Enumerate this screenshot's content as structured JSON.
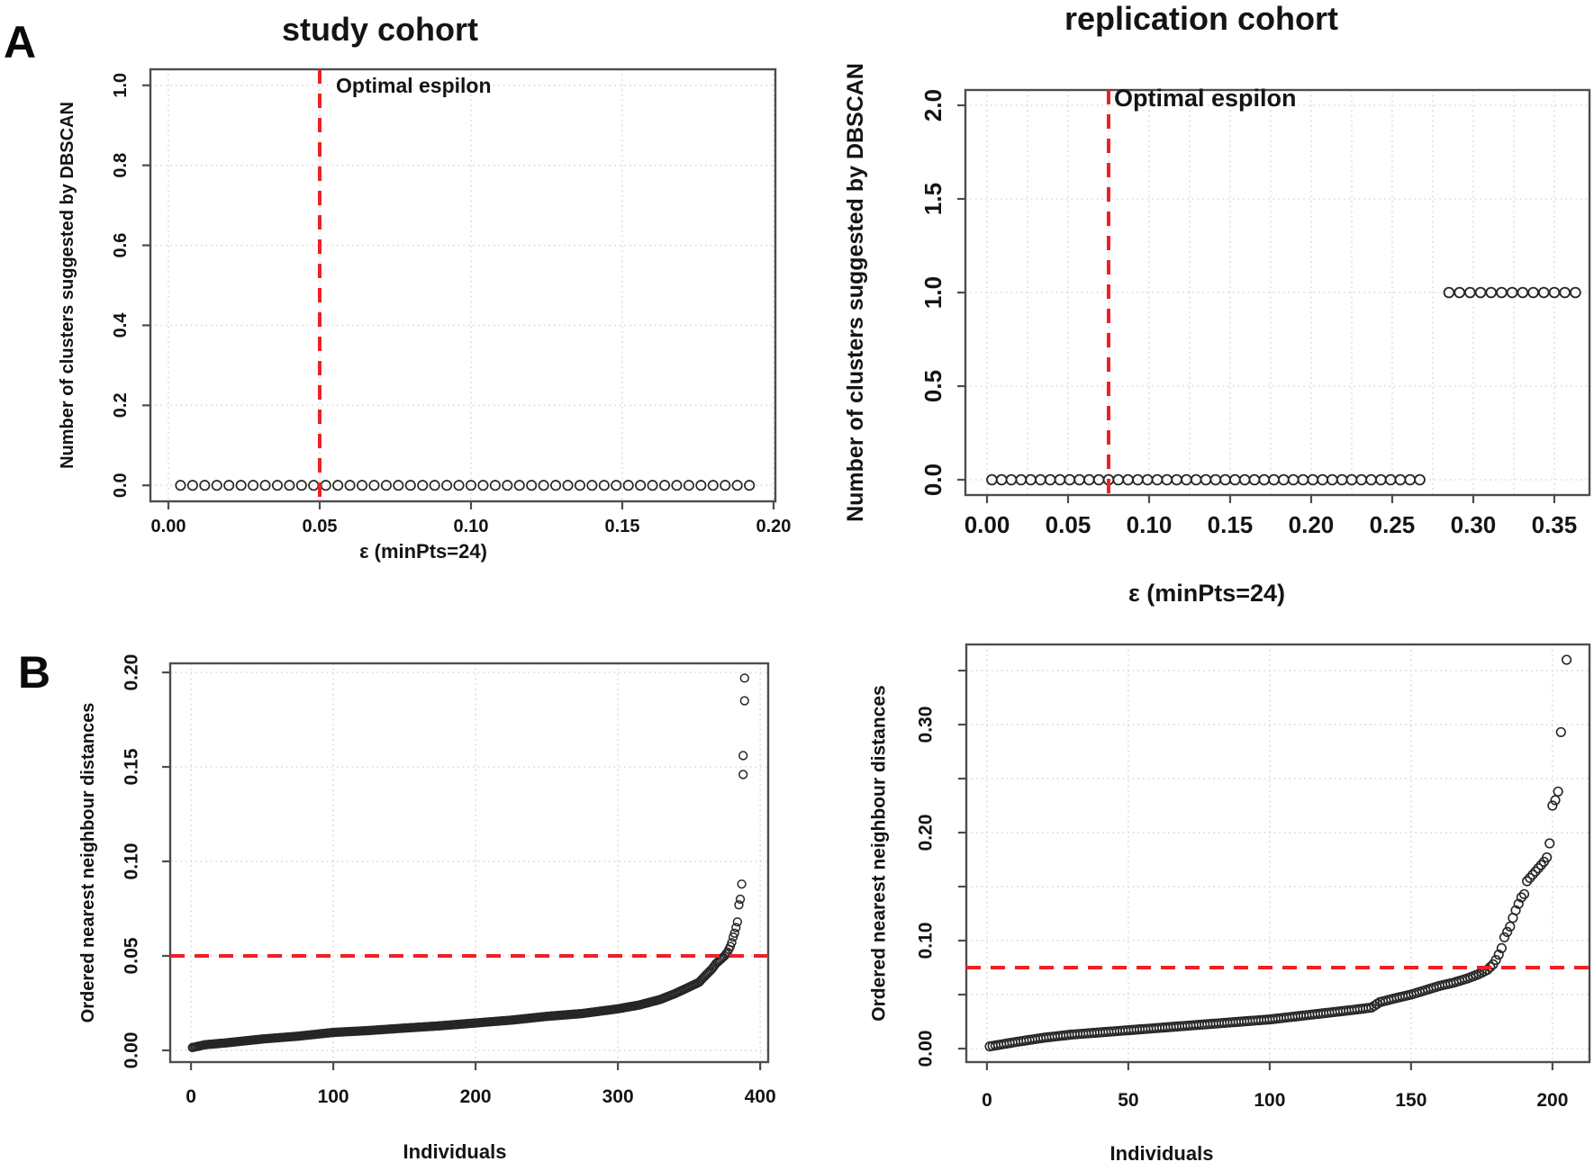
{
  "figure": {
    "panel_a_label": "A",
    "panel_b_label": "B",
    "accent_red": "#ee2125",
    "point_color": "#262626",
    "grid_color": "#d9d9d9",
    "axis_color": "#4d4d4d",
    "text_color": "#141414",
    "background": "#ffffff"
  },
  "chart_data": [
    {
      "id": "study-cohort-clusters",
      "type": "scatter",
      "title": "study cohort",
      "xlabel": "ε (minPts=24)",
      "ylabel": "Number of clusters suggested by DBSCAN",
      "xlim": [
        -0.00595,
        0.2006
      ],
      "ylim": [
        -0.04,
        1.04
      ],
      "xticks": {
        "values": [
          0,
          0.05,
          0.1,
          0.15,
          0.2
        ],
        "labels": [
          "0.00",
          "0.05",
          "0.10",
          "0.15",
          "0.20"
        ]
      },
      "yticks": {
        "values": [
          0,
          0.2,
          0.4,
          0.6,
          0.8,
          1.0
        ],
        "labels": [
          "0.0",
          "0.2",
          "0.4",
          "0.6",
          "0.8",
          "1.0"
        ]
      },
      "xgrid": [
        0,
        0.05,
        0.1,
        0.15,
        0.2
      ],
      "ygrid": [
        0,
        0.2,
        0.4,
        0.6,
        0.8,
        1.0
      ],
      "grid": "dotted",
      "ref_line": {
        "orient": "v",
        "value": 0.05,
        "label": "Optimal espilon",
        "style": "dashed"
      },
      "series": [
        {
          "name": "clusters-vs-epsilon",
          "y_constant": 0,
          "x": [
            0.004,
            0.008,
            0.012,
            0.016,
            0.02,
            0.024,
            0.028,
            0.032,
            0.036,
            0.04,
            0.044,
            0.048,
            0.052,
            0.056,
            0.06,
            0.064,
            0.068,
            0.072,
            0.076,
            0.08,
            0.084,
            0.088,
            0.092,
            0.096,
            0.1,
            0.104,
            0.108,
            0.112,
            0.116,
            0.12,
            0.124,
            0.128,
            0.132,
            0.136,
            0.14,
            0.144,
            0.148,
            0.152,
            0.156,
            0.16,
            0.164,
            0.168,
            0.172,
            0.176,
            0.18,
            0.184,
            0.188,
            0.192
          ]
        }
      ]
    },
    {
      "id": "replication-cohort-clusters",
      "type": "scatter",
      "title": "replication cohort",
      "xlabel": "ε (minPts=24)",
      "ylabel": "Number of clusters suggested by DBSCAN",
      "xlim": [
        -0.01333,
        0.3717
      ],
      "ylim": [
        -0.0817,
        2.0817
      ],
      "xticks": {
        "values": [
          0,
          0.05,
          0.1,
          0.15,
          0.2,
          0.25,
          0.3,
          0.35
        ],
        "labels": [
          "0.00",
          "0.05",
          "0.10",
          "0.15",
          "0.20",
          "0.25",
          "0.30",
          "0.35"
        ]
      },
      "yticks": {
        "values": [
          0,
          0.5,
          1.0,
          1.5,
          2.0
        ],
        "labels": [
          "0.0",
          "0.5",
          "1.0",
          "1.5",
          "2.0"
        ]
      },
      "xgrid": [
        0,
        0.025,
        0.05,
        0.075,
        0.1,
        0.125,
        0.15,
        0.175,
        0.2,
        0.225,
        0.25,
        0.275,
        0.3,
        0.325,
        0.35
      ],
      "ygrid": [
        0,
        0.5,
        1.0,
        1.5,
        2.0
      ],
      "grid": "dotted",
      "ref_line": {
        "orient": "v",
        "value": 0.075,
        "label": "Optimal espilon",
        "style": "dashed"
      },
      "series": [
        {
          "name": "zero-clusters",
          "y_constant": 0,
          "x": [
            0.003,
            0.009,
            0.015,
            0.021,
            0.027,
            0.033,
            0.039,
            0.045,
            0.051,
            0.057,
            0.063,
            0.069,
            0.075,
            0.081,
            0.087,
            0.093,
            0.099,
            0.105,
            0.111,
            0.117,
            0.123,
            0.129,
            0.135,
            0.141,
            0.147,
            0.153,
            0.159,
            0.165,
            0.171,
            0.177,
            0.183,
            0.189,
            0.195,
            0.201,
            0.207,
            0.213,
            0.219,
            0.225,
            0.231,
            0.237,
            0.243,
            0.249,
            0.255,
            0.261,
            0.267
          ]
        },
        {
          "name": "one-cluster",
          "y_constant": 1,
          "x": [
            0.285,
            0.2915,
            0.298,
            0.3045,
            0.311,
            0.3175,
            0.324,
            0.3305,
            0.337,
            0.3435,
            0.35,
            0.3565,
            0.363
          ]
        }
      ]
    },
    {
      "id": "study-cohort-knn",
      "type": "scatter",
      "title": "",
      "xlabel": "Individuals",
      "ylabel": "Ordered nearest neighbour distances",
      "xlim": [
        -14.6,
        405.6
      ],
      "ylim": [
        -0.0062,
        0.2048
      ],
      "xticks": {
        "values": [
          0,
          100,
          200,
          300,
          400
        ],
        "labels": [
          "0",
          "100",
          "200",
          "300",
          "400"
        ]
      },
      "yticks": {
        "values": [
          0,
          0.05,
          0.1,
          0.15,
          0.2
        ],
        "labels": [
          "0.00",
          "0.05",
          "0.10",
          "0.15",
          "0.20"
        ]
      },
      "xgrid": [
        0,
        100,
        200,
        300,
        400
      ],
      "ygrid": [
        0,
        0.05,
        0.1,
        0.15,
        0.2
      ],
      "grid": "dotted",
      "ref_line": {
        "orient": "h",
        "value": 0.05,
        "label": "",
        "style": "dashed"
      },
      "series": [
        {
          "name": "ordered-knn-distances",
          "curve": {
            "n": 387,
            "anchors": [
              [
                1,
                0.0015
              ],
              [
                10,
                0.003
              ],
              [
                25,
                0.004
              ],
              [
                50,
                0.006
              ],
              [
                75,
                0.0075
              ],
              [
                100,
                0.0095
              ],
              [
                125,
                0.0105
              ],
              [
                150,
                0.0118
              ],
              [
                175,
                0.013
              ],
              [
                200,
                0.0145
              ],
              [
                225,
                0.016
              ],
              [
                250,
                0.018
              ],
              [
                275,
                0.0195
              ],
              [
                300,
                0.022
              ],
              [
                315,
                0.024
              ],
              [
                330,
                0.027
              ],
              [
                340,
                0.03
              ],
              [
                350,
                0.0335
              ],
              [
                357,
                0.036
              ],
              [
                362,
                0.04
              ],
              [
                366,
                0.043
              ],
              [
                369,
                0.046
              ],
              [
                372,
                0.048
              ],
              [
                375,
                0.05
              ],
              [
                377,
                0.052
              ],
              [
                379,
                0.055
              ],
              [
                380,
                0.057
              ],
              [
                381,
                0.06
              ],
              [
                382,
                0.062
              ],
              [
                383,
                0.065
              ],
              [
                384,
                0.068
              ],
              [
                385,
                0.077
              ],
              [
                386,
                0.08
              ],
              [
                387,
                0.088
              ]
            ]
          },
          "extra_points": [
            [
              388,
              0.146
            ],
            [
              388,
              0.156
            ],
            [
              389,
              0.185
            ],
            [
              389,
              0.197
            ]
          ]
        }
      ]
    },
    {
      "id": "replication-cohort-knn",
      "type": "scatter",
      "title": "",
      "xlabel": "Individuals",
      "ylabel": "Ordered nearest neighbour distances",
      "xlim": [
        -7.3,
        213.1
      ],
      "ylim": [
        -0.0125,
        0.3742
      ],
      "xticks": {
        "values": [
          0,
          50,
          100,
          150,
          200
        ],
        "labels": [
          "0",
          "50",
          "100",
          "150",
          "200"
        ]
      },
      "yticks": {
        "values": [
          0,
          0.05,
          0.1,
          0.15,
          0.2,
          0.25,
          0.3,
          0.35
        ],
        "labels": [
          "0.00",
          "",
          "0.10",
          "",
          "0.20",
          "",
          "0.30",
          ""
        ]
      },
      "xgrid": [
        0,
        50,
        100,
        150,
        200
      ],
      "ygrid": [
        0,
        0.05,
        0.1,
        0.15,
        0.2,
        0.25,
        0.3,
        0.35
      ],
      "grid": "dotted",
      "ref_line": {
        "orient": "h",
        "value": 0.075,
        "label": "",
        "style": "dashed"
      },
      "series": [
        {
          "name": "ordered-knn-distances",
          "curve": {
            "n": 203,
            "anchors": [
              [
                1,
                0.002
              ],
              [
                10,
                0.006
              ],
              [
                20,
                0.01
              ],
              [
                30,
                0.013
              ],
              [
                40,
                0.015
              ],
              [
                50,
                0.017
              ],
              [
                60,
                0.019
              ],
              [
                70,
                0.021
              ],
              [
                80,
                0.023
              ],
              [
                90,
                0.025
              ],
              [
                100,
                0.027
              ],
              [
                110,
                0.03
              ],
              [
                120,
                0.033
              ],
              [
                130,
                0.036
              ],
              [
                136,
                0.038
              ],
              [
                139,
                0.043
              ],
              [
                145,
                0.047
              ],
              [
                150,
                0.05
              ],
              [
                155,
                0.054
              ],
              [
                160,
                0.058
              ],
              [
                165,
                0.061
              ],
              [
                170,
                0.065
              ],
              [
                174,
                0.069
              ],
              [
                177,
                0.073
              ],
              [
                179,
                0.078
              ],
              [
                180,
                0.082
              ],
              [
                181,
                0.087
              ],
              [
                182,
                0.093
              ],
              [
                183,
                0.103
              ],
              [
                184,
                0.108
              ],
              [
                185,
                0.113
              ],
              [
                186,
                0.121
              ],
              [
                187,
                0.128
              ],
              [
                188,
                0.134
              ],
              [
                189,
                0.14
              ],
              [
                190,
                0.143
              ],
              [
                191,
                0.155
              ],
              [
                192,
                0.158
              ],
              [
                193,
                0.161
              ],
              [
                194,
                0.164
              ],
              [
                195,
                0.167
              ],
              [
                196,
                0.17
              ],
              [
                197,
                0.173
              ],
              [
                198,
                0.177
              ],
              [
                199,
                0.19
              ],
              [
                200,
                0.225
              ],
              [
                201,
                0.23
              ],
              [
                202,
                0.238
              ],
              [
                203,
                0.293
              ]
            ]
          },
          "extra_points": [
            [
              205,
              0.36
            ]
          ]
        }
      ]
    }
  ]
}
